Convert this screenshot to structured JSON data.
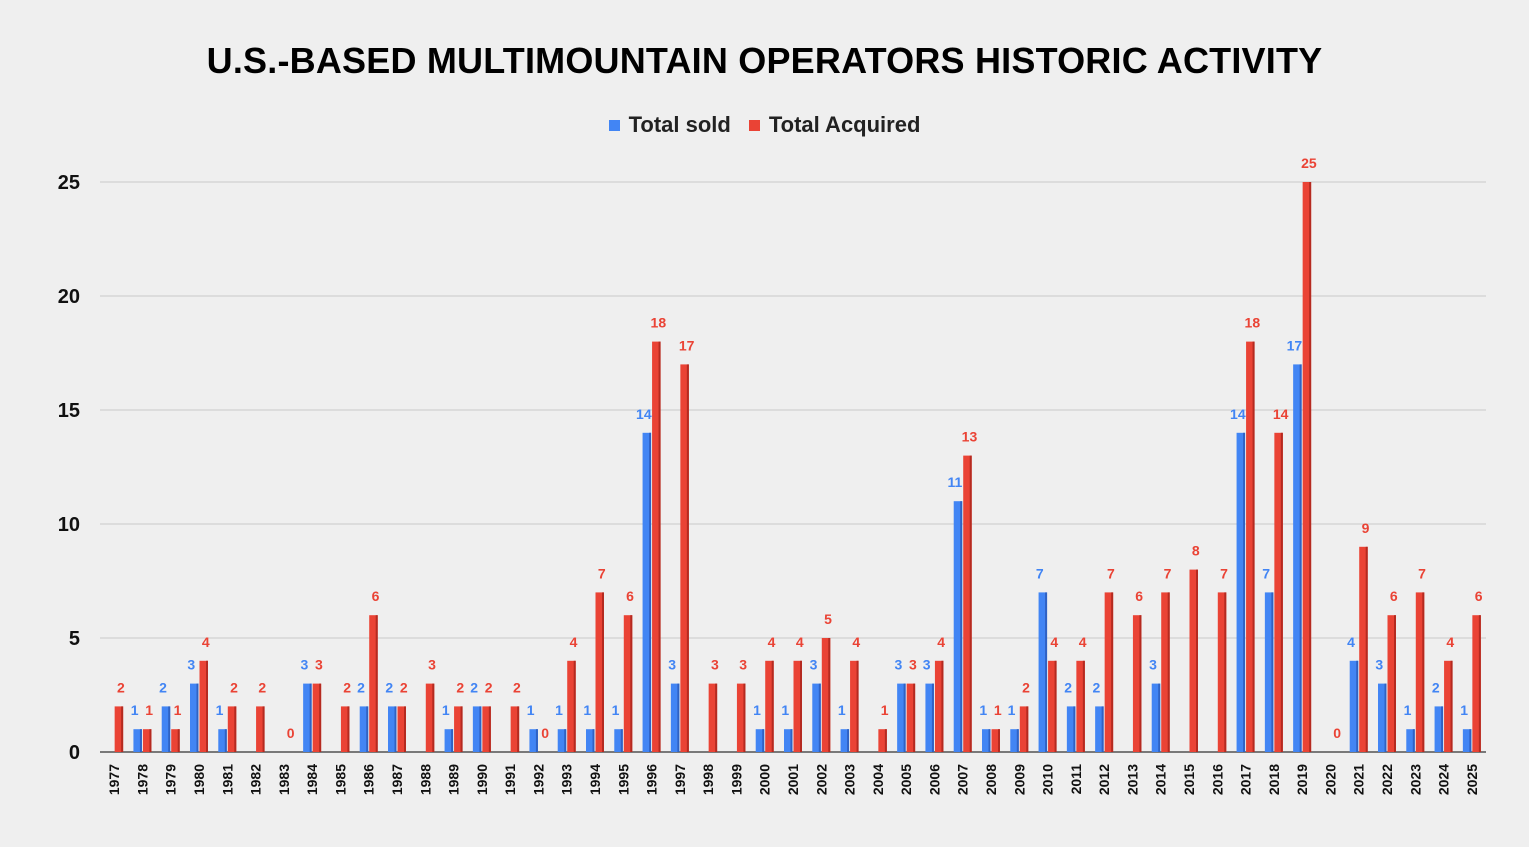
{
  "chart_data": {
    "type": "bar",
    "title": "U.S.-BASED MULTIMOUNTAIN OPERATORS HISTORIC ACTIVITY",
    "xlabel": "",
    "ylabel": "",
    "ylim": [
      0,
      25
    ],
    "yticks": [
      0,
      5,
      10,
      15,
      20,
      25
    ],
    "grid": true,
    "legend_position": "top-center",
    "categories": [
      "1977",
      "1978",
      "1979",
      "1980",
      "1981",
      "1982",
      "1983",
      "1984",
      "1985",
      "1986",
      "1987",
      "1988",
      "1989",
      "1990",
      "1991",
      "1992",
      "1993",
      "1994",
      "1995",
      "1996",
      "1997",
      "1998",
      "1999",
      "2000",
      "2001",
      "2002",
      "2003",
      "2004",
      "2005",
      "2006",
      "2007",
      "2008",
      "2009",
      "2010",
      "2011",
      "2012",
      "2013",
      "2014",
      "2015",
      "2016",
      "2017",
      "2018",
      "2019",
      "2020",
      "2021",
      "2022",
      "2023",
      "2024",
      "2025"
    ],
    "series": [
      {
        "name": "Total sold",
        "color": "#4285f4",
        "values": [
          null,
          1,
          2,
          3,
          1,
          null,
          null,
          3,
          null,
          2,
          2,
          null,
          1,
          2,
          null,
          1,
          1,
          1,
          1,
          14,
          3,
          null,
          null,
          1,
          1,
          3,
          1,
          null,
          3,
          3,
          11,
          1,
          1,
          7,
          2,
          2,
          null,
          3,
          null,
          null,
          14,
          7,
          17,
          null,
          4,
          3,
          1,
          2,
          1
        ]
      },
      {
        "name": "Total Acquired",
        "color": "#ea4335",
        "values": [
          2,
          1,
          1,
          4,
          2,
          2,
          0,
          3,
          2,
          6,
          2,
          3,
          2,
          2,
          2,
          0,
          4,
          7,
          6,
          18,
          17,
          3,
          3,
          4,
          4,
          5,
          4,
          1,
          3,
          4,
          13,
          1,
          2,
          4,
          4,
          7,
          6,
          7,
          8,
          7,
          18,
          14,
          25,
          0,
          9,
          6,
          7,
          4,
          6
        ]
      }
    ]
  }
}
